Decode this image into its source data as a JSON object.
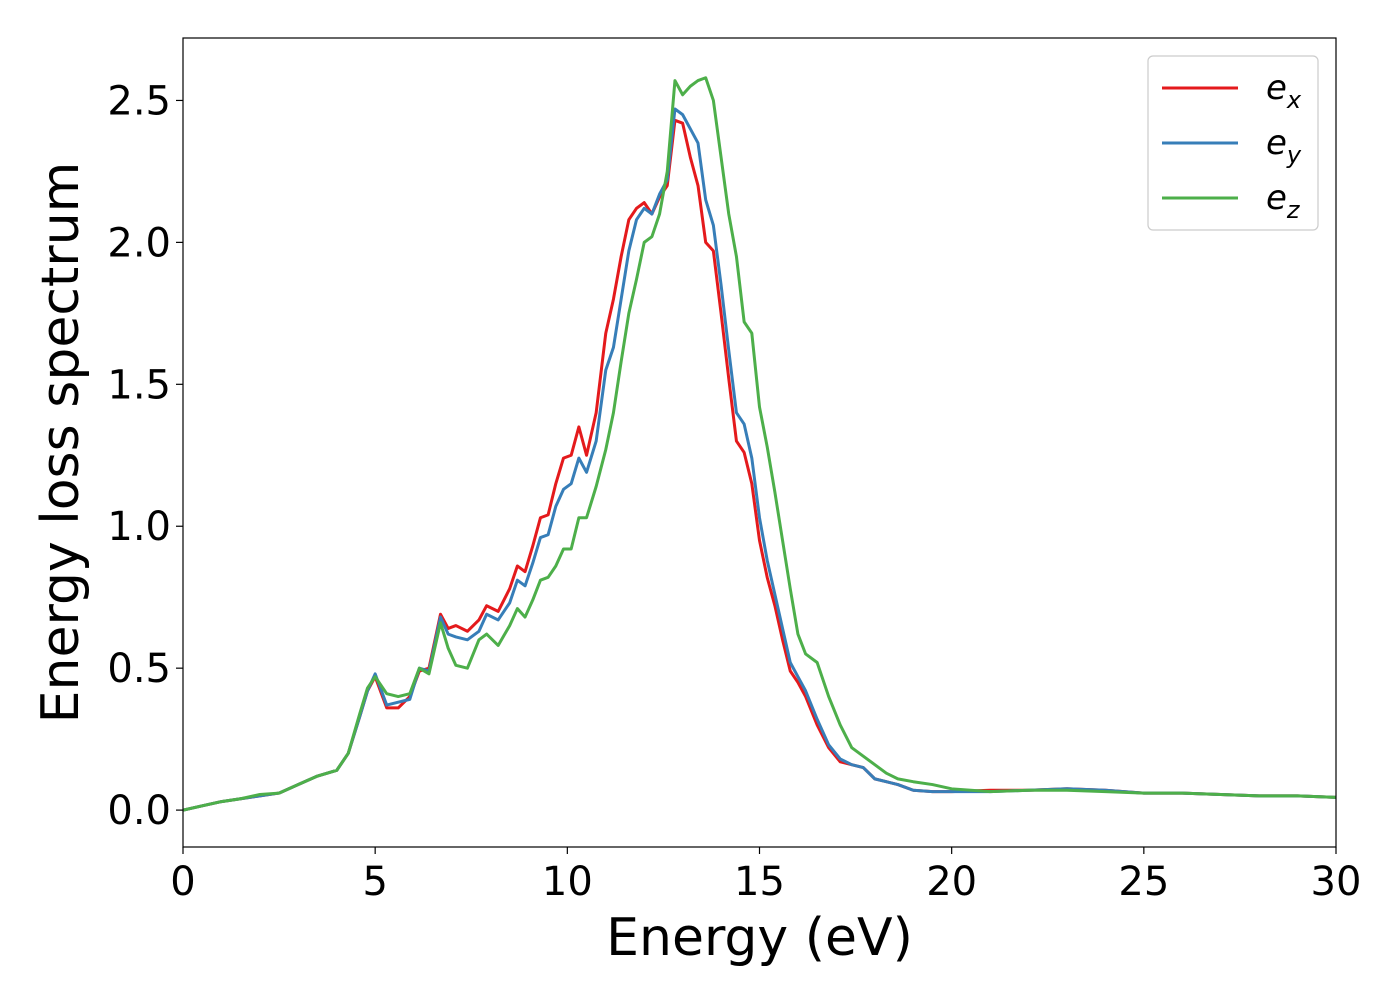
{
  "chart_data": {
    "type": "line",
    "title": "",
    "xlabel": "Energy (eV)",
    "ylabel": "Energy loss spectrum",
    "xlim": [
      0,
      30
    ],
    "ylim": [
      -0.13,
      2.72
    ],
    "xticks": [
      0,
      5,
      10,
      15,
      20,
      25,
      30
    ],
    "xtick_labels": [
      "0",
      "5",
      "10",
      "15",
      "20",
      "25",
      "30"
    ],
    "yticks": [
      0.0,
      0.5,
      1.0,
      1.5,
      2.0,
      2.5
    ],
    "ytick_labels": [
      "0.0",
      "0.5",
      "1.0",
      "1.5",
      "2.0",
      "2.5"
    ],
    "grid": false,
    "legend_position": "top-right",
    "series": [
      {
        "name": "e_x",
        "legend_base": "e",
        "legend_sub": "x",
        "color": "#e41a1c",
        "x": [
          0,
          0.5,
          1,
          1.5,
          2,
          2.5,
          3,
          3.5,
          4,
          4.3,
          4.6,
          4.8,
          5.0,
          5.3,
          5.6,
          5.9,
          6.15,
          6.4,
          6.7,
          6.9,
          7.1,
          7.4,
          7.7,
          7.9,
          8.2,
          8.5,
          8.7,
          8.9,
          9.1,
          9.3,
          9.5,
          9.7,
          9.9,
          10.1,
          10.3,
          10.5,
          10.75,
          11.0,
          11.2,
          11.4,
          11.6,
          11.8,
          12.0,
          12.2,
          12.4,
          12.6,
          12.8,
          13.0,
          13.2,
          13.4,
          13.6,
          13.8,
          14.0,
          14.2,
          14.4,
          14.6,
          14.8,
          15.0,
          15.2,
          15.4,
          15.6,
          15.8,
          16.0,
          16.2,
          16.5,
          16.8,
          17.1,
          17.4,
          17.7,
          18.0,
          18.3,
          18.6,
          19.0,
          19.5,
          20,
          21,
          22,
          23,
          24,
          25,
          26,
          27,
          28,
          29,
          30
        ],
        "values": [
          0.0,
          0.015,
          0.03,
          0.04,
          0.05,
          0.06,
          0.09,
          0.12,
          0.14,
          0.2,
          0.33,
          0.42,
          0.47,
          0.36,
          0.36,
          0.4,
          0.49,
          0.5,
          0.69,
          0.64,
          0.65,
          0.63,
          0.67,
          0.72,
          0.7,
          0.78,
          0.86,
          0.84,
          0.93,
          1.03,
          1.04,
          1.15,
          1.24,
          1.25,
          1.35,
          1.25,
          1.4,
          1.68,
          1.8,
          1.95,
          2.08,
          2.12,
          2.14,
          2.1,
          2.16,
          2.2,
          2.43,
          2.42,
          2.3,
          2.2,
          2.0,
          1.97,
          1.75,
          1.52,
          1.3,
          1.26,
          1.15,
          0.95,
          0.82,
          0.72,
          0.6,
          0.49,
          0.45,
          0.4,
          0.3,
          0.22,
          0.17,
          0.16,
          0.15,
          0.11,
          0.1,
          0.09,
          0.07,
          0.065,
          0.065,
          0.07,
          0.07,
          0.075,
          0.07,
          0.06,
          0.06,
          0.055,
          0.05,
          0.05,
          0.045
        ]
      },
      {
        "name": "e_y",
        "legend_base": "e",
        "legend_sub": "y",
        "color": "#377eb8",
        "x": [
          0,
          0.5,
          1,
          1.5,
          2,
          2.5,
          3,
          3.5,
          4,
          4.3,
          4.6,
          4.8,
          5.0,
          5.3,
          5.6,
          5.9,
          6.15,
          6.4,
          6.7,
          6.9,
          7.1,
          7.4,
          7.7,
          7.9,
          8.2,
          8.5,
          8.7,
          8.9,
          9.1,
          9.3,
          9.5,
          9.7,
          9.9,
          10.1,
          10.3,
          10.5,
          10.75,
          11.0,
          11.2,
          11.4,
          11.6,
          11.8,
          12.0,
          12.2,
          12.4,
          12.6,
          12.8,
          13.0,
          13.2,
          13.4,
          13.6,
          13.8,
          14.0,
          14.2,
          14.4,
          14.6,
          14.8,
          15.0,
          15.2,
          15.4,
          15.6,
          15.8,
          16.0,
          16.2,
          16.5,
          16.8,
          17.1,
          17.4,
          17.7,
          18.0,
          18.3,
          18.6,
          19.0,
          19.5,
          20,
          21,
          22,
          23,
          24,
          25,
          26,
          27,
          28,
          29,
          30
        ],
        "values": [
          0.0,
          0.015,
          0.03,
          0.04,
          0.05,
          0.06,
          0.09,
          0.12,
          0.14,
          0.2,
          0.33,
          0.42,
          0.48,
          0.37,
          0.38,
          0.39,
          0.5,
          0.49,
          0.68,
          0.62,
          0.61,
          0.6,
          0.63,
          0.69,
          0.67,
          0.73,
          0.81,
          0.79,
          0.87,
          0.96,
          0.97,
          1.07,
          1.13,
          1.15,
          1.24,
          1.19,
          1.3,
          1.55,
          1.63,
          1.8,
          1.97,
          2.08,
          2.12,
          2.1,
          2.17,
          2.22,
          2.47,
          2.45,
          2.4,
          2.35,
          2.15,
          2.06,
          1.85,
          1.62,
          1.4,
          1.36,
          1.24,
          1.03,
          0.88,
          0.76,
          0.64,
          0.52,
          0.47,
          0.42,
          0.32,
          0.23,
          0.18,
          0.16,
          0.15,
          0.11,
          0.1,
          0.09,
          0.07,
          0.065,
          0.065,
          0.065,
          0.07,
          0.075,
          0.07,
          0.06,
          0.06,
          0.055,
          0.05,
          0.05,
          0.045
        ]
      },
      {
        "name": "e_z",
        "legend_base": "e",
        "legend_sub": "z",
        "color": "#4daf4a",
        "x": [
          0,
          0.5,
          1,
          1.5,
          2,
          2.5,
          3,
          3.5,
          4,
          4.3,
          4.6,
          4.8,
          5.0,
          5.3,
          5.6,
          5.9,
          6.15,
          6.4,
          6.7,
          6.9,
          7.1,
          7.4,
          7.7,
          7.9,
          8.2,
          8.5,
          8.7,
          8.9,
          9.1,
          9.3,
          9.5,
          9.7,
          9.9,
          10.1,
          10.3,
          10.5,
          10.75,
          11.0,
          11.2,
          11.4,
          11.6,
          11.8,
          12.0,
          12.2,
          12.4,
          12.6,
          12.8,
          13.0,
          13.2,
          13.4,
          13.6,
          13.8,
          14.0,
          14.2,
          14.4,
          14.6,
          14.8,
          15.0,
          15.2,
          15.4,
          15.6,
          15.8,
          16.0,
          16.2,
          16.5,
          16.8,
          17.1,
          17.4,
          17.7,
          18.0,
          18.3,
          18.6,
          19.0,
          19.5,
          20,
          21,
          22,
          23,
          24,
          25,
          26,
          27,
          28,
          29,
          30
        ],
        "values": [
          0.0,
          0.015,
          0.03,
          0.04,
          0.055,
          0.06,
          0.09,
          0.12,
          0.14,
          0.2,
          0.34,
          0.43,
          0.47,
          0.41,
          0.4,
          0.41,
          0.5,
          0.48,
          0.66,
          0.57,
          0.51,
          0.5,
          0.6,
          0.62,
          0.58,
          0.65,
          0.71,
          0.68,
          0.74,
          0.81,
          0.82,
          0.86,
          0.92,
          0.92,
          1.03,
          1.03,
          1.14,
          1.27,
          1.4,
          1.58,
          1.75,
          1.87,
          2.0,
          2.02,
          2.1,
          2.25,
          2.57,
          2.52,
          2.55,
          2.57,
          2.58,
          2.5,
          2.3,
          2.1,
          1.95,
          1.72,
          1.68,
          1.42,
          1.28,
          1.12,
          0.95,
          0.78,
          0.62,
          0.55,
          0.52,
          0.4,
          0.3,
          0.22,
          0.19,
          0.16,
          0.13,
          0.11,
          0.1,
          0.09,
          0.075,
          0.065,
          0.07,
          0.07,
          0.065,
          0.06,
          0.06,
          0.055,
          0.05,
          0.05,
          0.045
        ]
      }
    ]
  }
}
